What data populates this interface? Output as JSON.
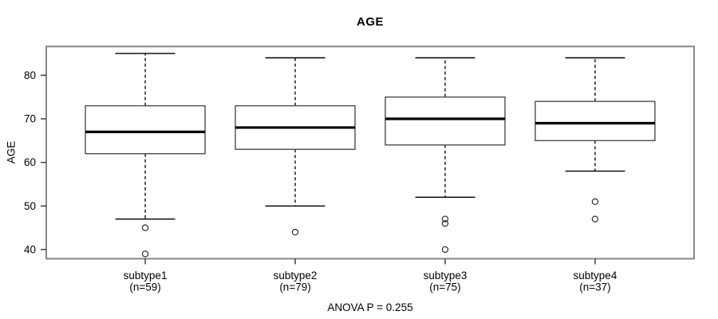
{
  "chart_data": {
    "type": "boxplot",
    "title": "AGE",
    "ylabel": "AGE",
    "xlabel": "",
    "annotation": "ANOVA P = 0.255",
    "y_ticks": [
      40,
      50,
      60,
      70,
      80
    ],
    "ylim": [
      37.9,
      86.6
    ],
    "grid": false,
    "legend": "none",
    "groups": [
      {
        "label": "subtype1",
        "n_label": "(n=59)",
        "n": 59,
        "lower_whisker": 47,
        "q1": 62,
        "median": 67,
        "q3": 73,
        "upper_whisker": 85,
        "outliers": [
          45,
          39
        ]
      },
      {
        "label": "subtype2",
        "n_label": "(n=79)",
        "n": 79,
        "lower_whisker": 50,
        "q1": 63,
        "median": 68,
        "q3": 73,
        "upper_whisker": 84,
        "outliers": [
          44
        ]
      },
      {
        "label": "subtype3",
        "n_label": "(n=75)",
        "n": 75,
        "lower_whisker": 52,
        "q1": 64,
        "median": 70,
        "q3": 75,
        "upper_whisker": 84,
        "outliers": [
          47,
          46,
          40
        ]
      },
      {
        "label": "subtype4",
        "n_label": "(n=37)",
        "n": 37,
        "lower_whisker": 58,
        "q1": 65,
        "median": 69,
        "q3": 74,
        "upper_whisker": 84,
        "outliers": [
          51,
          47
        ]
      }
    ],
    "colors": {
      "frame": "#878787",
      "box_border": "#4d4d4d",
      "whisker": "#000000",
      "median": "#000000",
      "outlier": "#2b2b2b",
      "text": "#000000",
      "background": "#ffffff"
    }
  }
}
